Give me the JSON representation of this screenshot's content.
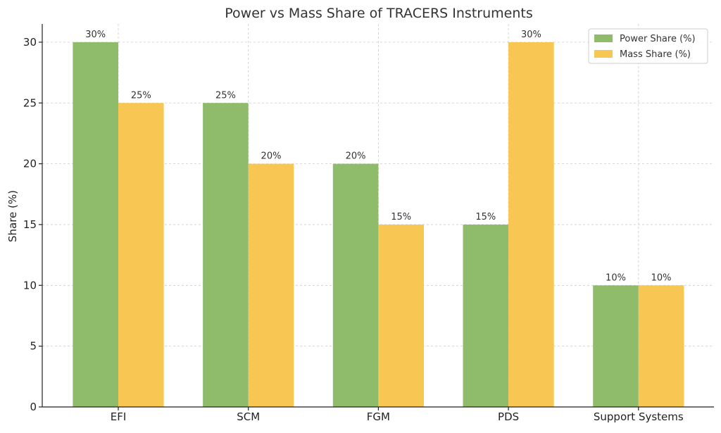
{
  "chart_data": {
    "type": "bar",
    "title": "Power vs Mass Share of TRACERS Instruments",
    "xlabel": "",
    "ylabel": "Share (%)",
    "ylim": [
      0,
      31.5
    ],
    "yticks": [
      0,
      5,
      10,
      15,
      20,
      25,
      30
    ],
    "grid": true,
    "legend_position": "top-right",
    "categories": [
      "EFI",
      "SCM",
      "FGM",
      "PDS",
      "Support Systems"
    ],
    "series": [
      {
        "name": "Power Share (%)",
        "color": "#8fbc6b",
        "values": [
          30,
          25,
          20,
          15,
          10
        ],
        "labels": [
          "30%",
          "25%",
          "20%",
          "15%",
          "10%"
        ]
      },
      {
        "name": "Mass Share (%)",
        "color": "#f8c652",
        "values": [
          25,
          20,
          15,
          30,
          10
        ],
        "labels": [
          "25%",
          "20%",
          "15%",
          "30%",
          "10%"
        ]
      }
    ]
  }
}
